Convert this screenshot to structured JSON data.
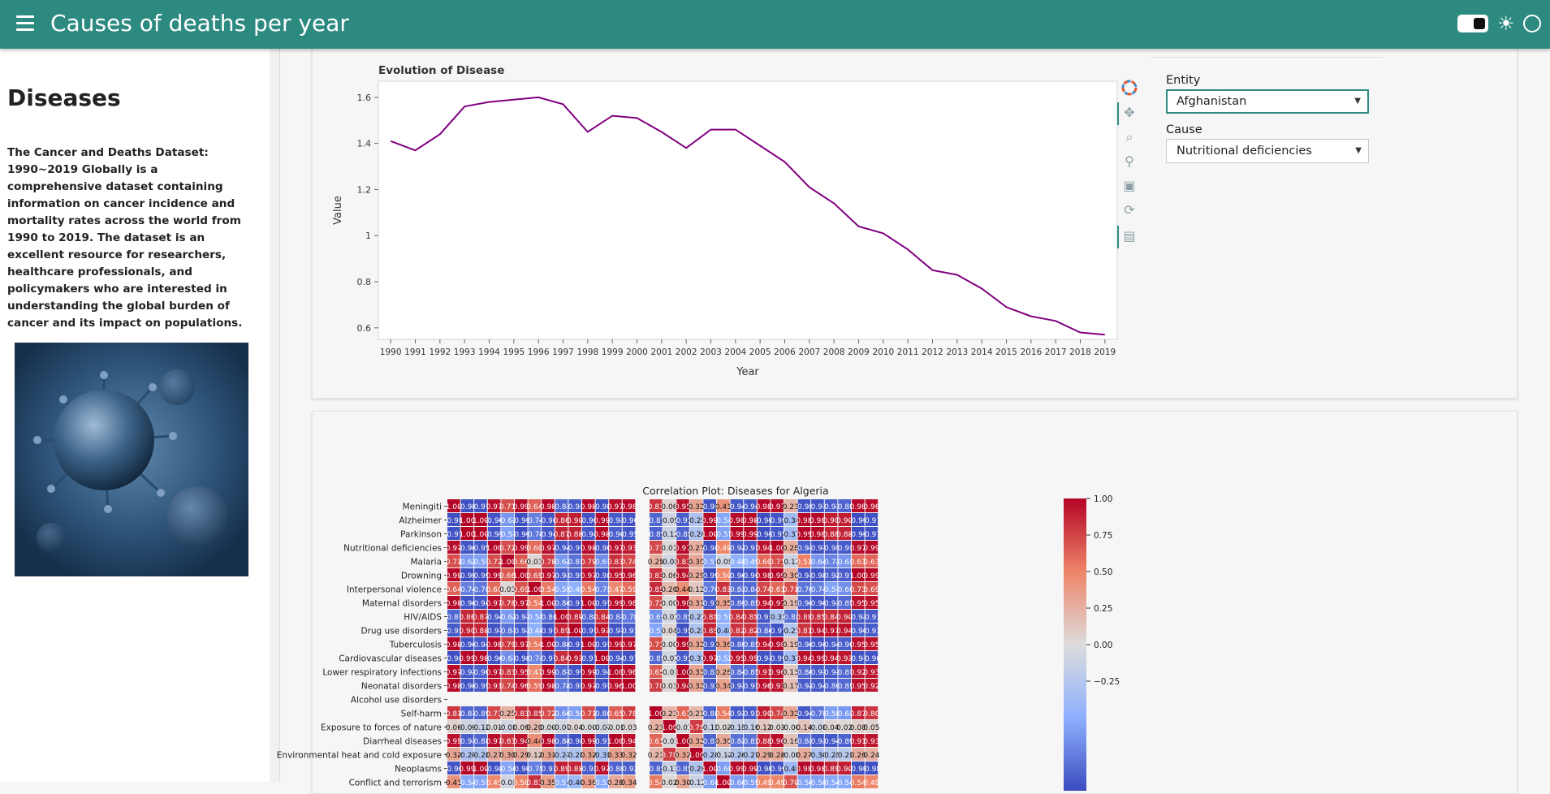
{
  "header": {
    "title": "Causes of deaths per year"
  },
  "sidebar": {
    "heading": "Diseases",
    "description": "The Cancer and Deaths Dataset: 1990~2019 Globally is a comprehensive dataset containing information on cancer incidence and mortality rates across the world from 1990 to 2019. The dataset is an excellent resource for researchers, healthcare professionals, and policymakers who are interested in understanding the global burden of cancer and its impact on populations."
  },
  "widgets": {
    "entity_label": "Entity",
    "entity_value": "Afghanistan",
    "cause_label": "Cause",
    "cause_value": "Nutritional deficiencies"
  },
  "colors": {
    "header": "#2c8a80",
    "line": "#800080"
  },
  "toolbar": [
    "bokeh-logo-icon",
    "pan-icon",
    "box-zoom-icon",
    "wheel-zoom-icon",
    "save-icon",
    "reset-icon",
    "hover-icon"
  ],
  "chart_data": [
    {
      "type": "line",
      "title": "Evolution of Disease",
      "xlabel": "Year",
      "ylabel": "Value",
      "x": [
        1990,
        1991,
        1992,
        1993,
        1994,
        1995,
        1996,
        1997,
        1998,
        1999,
        2000,
        2001,
        2002,
        2003,
        2004,
        2005,
        2006,
        2007,
        2008,
        2009,
        2010,
        2011,
        2012,
        2013,
        2014,
        2015,
        2016,
        2017,
        2018,
        2019
      ],
      "y": [
        1.41,
        1.37,
        1.44,
        1.56,
        1.58,
        1.59,
        1.6,
        1.57,
        1.45,
        1.52,
        1.51,
        1.45,
        1.38,
        1.46,
        1.46,
        1.39,
        1.32,
        1.21,
        1.14,
        1.04,
        1.01,
        0.94,
        0.85,
        0.83,
        0.77,
        0.69,
        0.65,
        0.63,
        0.58,
        0.57
      ],
      "yticks": [
        "0.6",
        "0.8",
        "1",
        "1.2",
        "1.4",
        "1.6"
      ],
      "ylim": [
        0.55,
        1.67
      ],
      "xlim": [
        1989.5,
        2019.5
      ],
      "color": "#800080"
    },
    {
      "type": "heatmap",
      "title": "Correlation Plot: Diseases for Algeria",
      "rows": [
        "Meningiti",
        "Alzheimer",
        "Parkinson",
        "Nutritional deficiencies",
        "Malaria",
        "Drowning",
        "Interpersonal violence",
        "Maternal disorders",
        "HIV/AIDS",
        "Drug use disorders",
        "Tuberculosis",
        "Cardiovascular diseases",
        "Lower respiratory infections",
        "Neonatal disorders",
        "Alcohol use disorders",
        "Self-harm",
        "Exposure to forces of nature",
        "Diarrheal diseases",
        "Environmental heat and cold exposure",
        "Neoplasms",
        "Conflict and terrorism"
      ],
      "colorbar_ticks": [
        "1.00",
        "0.75",
        "0.50",
        "0.25",
        "0.00",
        "−0.25"
      ],
      "clim": [
        -1,
        1
      ],
      "cells": [
        [
          "1.00",
          "-0.98",
          "-0.97",
          "0.97",
          "0.71",
          "0.99",
          "0.64",
          "0.98",
          "-0.87",
          "-0.93",
          "0.98",
          "-0.98",
          "0.97",
          "0.98",
          "",
          "0.81",
          "0.06",
          "0.95",
          "0.32",
          "-0.96",
          "0.41",
          "-0.94",
          "-0.94",
          "0.98",
          "0.97",
          "0.23",
          "-0.95",
          "-0.97",
          "-0.91",
          "-0.88",
          "0.98",
          "0.96"
        ],
        [
          "-0.98",
          "1.00",
          "1.00",
          "-0.96",
          "-0.62",
          "-0.99",
          "-0.74",
          "-0.96",
          "0.86",
          "0.90",
          "-0.96",
          "0.99",
          "-0.93",
          "-0.96",
          "",
          "-0.87",
          "-0.09",
          "-0.91",
          "-0.29",
          "0.99",
          "-0.54",
          "0.98",
          "0.98",
          "-0.99",
          "-0.96",
          "-0.36",
          "0.98",
          "0.98",
          "0.90",
          "0.90",
          "-0.99",
          "-0.97"
        ],
        [
          "-0.97",
          "1.00",
          "1.00",
          "-0.95",
          "-0.57",
          "-0.99",
          "-0.78",
          "-0.94",
          "0.87",
          "0.88",
          "-0.94",
          "0.98",
          "-0.90",
          "-0.95",
          "",
          "-0.89",
          "-0.12",
          "-0.88",
          "-0.28",
          "1.00",
          "-0.57",
          "0.99",
          "0.99",
          "-0.99",
          "-0.95",
          "-0.37",
          "0.99",
          "0.98",
          "0.88",
          "0.88",
          "-0.99",
          "-0.97"
        ],
        [
          "0.97",
          "-0.96",
          "-0.95",
          "1.00",
          "0.72",
          "0.99",
          "0.60",
          "0.97",
          "-0.94",
          "-0.97",
          "0.98",
          "-0.96",
          "0.97",
          "0.93",
          "",
          "0.73",
          "0.01",
          "0.97",
          "0.27",
          "-0.98",
          "0.49",
          "-0.92",
          "-0.93",
          "0.94",
          "1.00",
          "0.28",
          "-0.91",
          "-0.97",
          "-0.95",
          "-0.93",
          "0.97",
          "0.99"
        ],
        [
          "0.71",
          "-0.62",
          "-0.57",
          "0.72",
          "1.00",
          "0.66",
          "0.03",
          "0.78",
          "-0.62",
          "-0.81",
          "0.79",
          "-0.67",
          "0.83",
          "0.74",
          "",
          "0.25",
          "-0.08",
          "0.83",
          "0.30",
          "-0.57",
          "-0.08",
          "-0.48",
          "-0.49",
          "0.60",
          "0.71",
          "-0.12",
          "0.51",
          "-0.64",
          "-0.73",
          "-0.63",
          "0.61",
          "0.63"
        ],
        [
          "0.99",
          "-0.99",
          "-0.99",
          "0.99",
          "0.66",
          "1.00",
          "0.69",
          "0.97",
          "-0.91",
          "-0.93",
          "0.97",
          "-0.98",
          "0.95",
          "0.96",
          "",
          "0.83",
          "0.06",
          "0.94",
          "0.29",
          "-0.99",
          "0.50",
          "-0.96",
          "-0.96",
          "0.98",
          "0.99",
          "0.30",
          "-0.97",
          "-0.98",
          "-0.92",
          "-0.91",
          "1.00",
          "0.99"
        ],
        [
          "0.64",
          "-0.74",
          "-0.78",
          "0.60",
          "0.03",
          "0.69",
          "1.00",
          "0.54",
          "-0.55",
          "-0.48",
          "0.54",
          "-0.71",
          "0.47",
          "0.59",
          "",
          "0.85",
          "0.20",
          "0.44",
          "0.12",
          "-0.76",
          "0.83",
          "-0.83",
          "-0.84",
          "0.74",
          "0.61",
          "0.71",
          "-0.79",
          "-0.74",
          "-0.57",
          "-0.66",
          "0.73",
          "0.69"
        ],
        [
          "0.98",
          "-0.96",
          "-0.94",
          "0.97",
          "0.78",
          "0.97",
          "0.54",
          "1.00",
          "-0.86",
          "-0.97",
          "1.00",
          "-0.97",
          "0.99",
          "0.98",
          "",
          "0.72",
          "0.00",
          "0.98",
          "0.31",
          "-0.93",
          "0.35",
          "-0.89",
          "-0.85",
          "0.94",
          "0.97",
          "0.19",
          "-0.90",
          "-0.96",
          "-0.93",
          "-0.85",
          "0.95",
          "0.95"
        ],
        [
          "-0.87",
          "0.86",
          "0.87",
          "-0.94",
          "-0.62",
          "-0.91",
          "-0.55",
          "-0.86",
          "1.00",
          "0.89",
          "-0.88",
          "0.84",
          "-0.87",
          "-0.78",
          "",
          "-0.66",
          "-0.07",
          "-0.88",
          "-0.27",
          "0.85",
          "-0.51",
          "0.84",
          "0.85",
          "-0.94",
          "-0.31",
          "-0.83",
          "0.88",
          "0.85",
          "0.84",
          "0.90",
          "-0.93",
          "-0.93"
        ],
        [
          "-0.93",
          "0.90",
          "0.88",
          "-0.97",
          "-0.81",
          "-0.93",
          "-0.48",
          "-0.97",
          "0.89",
          "1.00",
          "-0.97",
          "0.93",
          "-0.97",
          "-0.91",
          "",
          "-0.55",
          "0.04",
          "-0.98",
          "-0.28",
          "0.88",
          "-0.40",
          "0.82",
          "0.82",
          "-0.86",
          "-0.97",
          "-0.25",
          "0.81",
          "0.94",
          "0.97",
          "0.94",
          "-0.90",
          "-0.93"
        ],
        [
          "0.98",
          "-0.96",
          "-0.94",
          "0.98",
          "0.79",
          "0.97",
          "0.54",
          "1.00",
          "-0.88",
          "-0.97",
          "1.00",
          "-0.97",
          "0.99",
          "0.97",
          "",
          "0.71",
          "0.00",
          "0.99",
          "0.32",
          "-0.93",
          "0.36",
          "-0.89",
          "-0.85",
          "0.94",
          "0.98",
          "0.19",
          "-0.90",
          "-0.96",
          "-0.94",
          "-0.90",
          "0.95",
          "0.95"
        ],
        [
          "-0.98",
          "0.99",
          "0.98",
          "-0.96",
          "-0.67",
          "-0.98",
          "-0.71",
          "-0.97",
          "0.84",
          "0.93",
          "-0.97",
          "1.00",
          "-0.94",
          "-0.97",
          "",
          "-0.86",
          "-0.07",
          "-0.93",
          "-0.31",
          "0.97",
          "-0.52",
          "0.95",
          "0.95",
          "-0.97",
          "-0.96",
          "-0.37",
          "0.94",
          "0.99",
          "0.94",
          "0.93",
          "-0.97",
          "-0.96"
        ],
        [
          "0.97",
          "-0.93",
          "-0.90",
          "0.97",
          "0.83",
          "0.95",
          "0.47",
          "0.99",
          "-0.87",
          "-0.97",
          "0.99",
          "-0.94",
          "1.00",
          "0.96",
          "",
          "0.65",
          "-0.01",
          "1.00",
          "0.33",
          "-0.88",
          "0.28",
          "-0.84",
          "-0.85",
          "0.91",
          "0.96",
          "0.13",
          "-0.86",
          "-0.93",
          "-0.93",
          "-0.87",
          "0.92",
          "0.93"
        ],
        [
          "0.98",
          "-0.96",
          "-0.95",
          "0.93",
          "0.74",
          "0.96",
          "0.59",
          "0.98",
          "-0.78",
          "-0.93",
          "0.97",
          "-0.97",
          "0.96",
          "1.00",
          "",
          "0.78",
          "0.03",
          "0.94",
          "0.32",
          "-0.92",
          "0.34",
          "-0.91",
          "-0.93",
          "0.96",
          "0.93",
          "0.17",
          "-0.92",
          "-0.94",
          "-0.89",
          "-0.85",
          "0.95",
          "0.92"
        ],
        [
          "",
          "",
          "",
          "",
          "",
          "",
          "",
          "",
          "",
          "",
          "",
          "",
          "",
          "",
          "",
          "",
          "",
          "",
          "",
          "",
          "",
          "",
          "",
          "",
          "",
          "",
          "",
          "",
          "",
          "",
          "",
          ""
        ],
        [
          "0.81",
          "-0.87",
          "-0.89",
          "0.73",
          "0.25",
          "0.83",
          "0.85",
          "0.72",
          "-0.66",
          "-0.58",
          "0.71",
          "-0.86",
          "0.65",
          "0.78",
          "",
          "1.00",
          "0.23",
          "0.61",
          "0.21",
          "-0.88",
          "0.54",
          "-0.93",
          "-0.93",
          "0.90",
          "0.74",
          "0.32",
          "-0.94",
          "-0.79",
          "-0.58",
          "-0.62",
          "0.87",
          "0.80"
        ],
        [
          "0.06",
          "-0.09",
          "-0.12",
          "0.01",
          "-0.08",
          "0.06",
          "0.20",
          "0.00",
          "-0.07",
          "0.04",
          "0.00",
          "-0.07",
          "-0.01",
          "0.03",
          "",
          "0.23",
          "1.00",
          "-0.03",
          "0.78",
          "-0.13",
          "0.02",
          "-0.15",
          "-0.16",
          "0.12",
          "0.03",
          "-0.00",
          "0.14",
          "-0.08",
          "0.04",
          "0.02",
          "0.08",
          "0.05"
        ],
        [
          "0.95",
          "-0.91",
          "-0.88",
          "0.97",
          "0.83",
          "0.94",
          "0.44",
          "0.98",
          "-0.88",
          "-0.98",
          "0.99",
          "-0.93",
          "1.00",
          "0.94",
          "",
          "0.61",
          "-0.03",
          "1.00",
          "0.32",
          "-0.88",
          "0.30",
          "-0.82",
          "-0.82",
          "0.88",
          "0.96",
          "0.16",
          "-0.83",
          "-0.93",
          "-0.94",
          "-0.89",
          "0.91",
          "0.93"
        ],
        [
          "0.32",
          "-0.29",
          "-0.28",
          "0.27",
          "0.30",
          "0.29",
          "0.12",
          "0.31",
          "-0.27",
          "-0.28",
          "0.32",
          "-0.31",
          "0.33",
          "0.32",
          "",
          "0.21",
          "0.78",
          "0.32",
          "1.00",
          "-0.28",
          "-0.12",
          "-0.26",
          "-0.27",
          "0.29",
          "0.28",
          "-0.08",
          "0.27",
          "-0.30",
          "-0.25",
          "-0.21",
          "0.26",
          "0.24"
        ],
        [
          "-0.96",
          "0.99",
          "1.00",
          "-0.98",
          "-0.56",
          "-0.99",
          "-0.75",
          "-0.93",
          "0.89",
          "0.88",
          "-0.93",
          "0.97",
          "-0.89",
          "-0.92",
          "",
          "-0.88",
          "-0.13",
          "-0.88",
          "-0.28",
          "1.00",
          "-0.60",
          "0.99",
          "0.99",
          "-0.99",
          "-0.96",
          "-0.40",
          "0.98",
          "0.98",
          "0.89",
          "0.90",
          "-0.99",
          "-0.98"
        ],
        [
          "0.41",
          "-0.54",
          "-0.57",
          "0.49",
          "-0.08",
          "0.50",
          "0.83",
          "0.35",
          "-0.51",
          "-0.40",
          "0.36",
          "-0.52",
          "0.28",
          "0.34",
          "",
          "0.54",
          "0.02",
          "0.30",
          "-0.12",
          "-0.60",
          "1.00",
          "-0.60",
          "-0.59",
          "0.49",
          "0.49",
          "0.70",
          "-0.56",
          "-0.58",
          "-0.54",
          "-0.54",
          "0.54",
          "0.49"
        ]
      ]
    }
  ]
}
